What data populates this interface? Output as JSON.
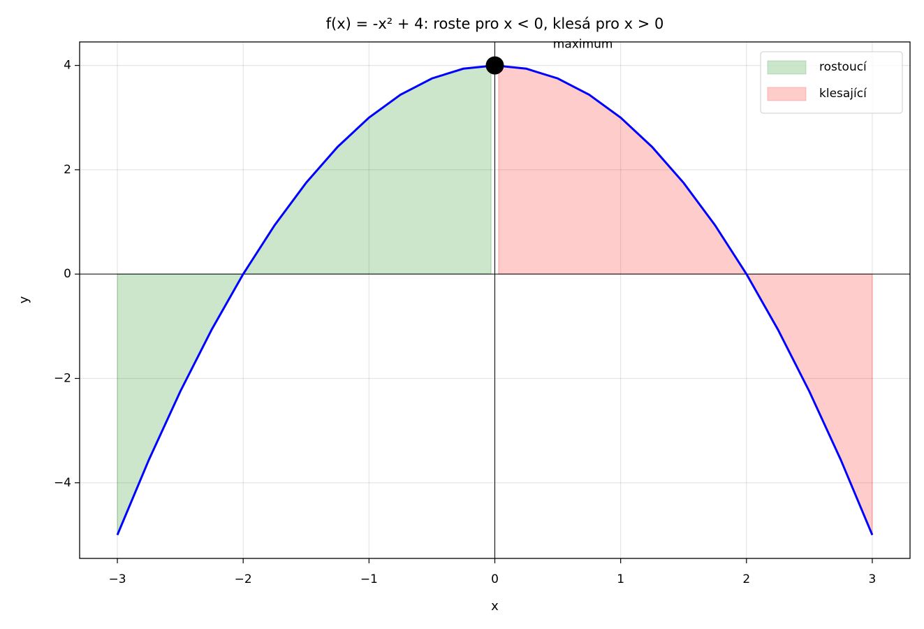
{
  "chart_data": {
    "type": "line",
    "title": "f(x) = -x² + 4: roste pro x < 0, klesá pro x > 0",
    "x_label": "x",
    "y_label": "y",
    "x": [
      -3,
      -2.75,
      -2.5,
      -2.25,
      -2,
      -1.75,
      -1.5,
      -1.25,
      -1,
      -0.75,
      -0.5,
      -0.25,
      0,
      0.25,
      0.5,
      0.75,
      1,
      1.25,
      1.5,
      1.75,
      2,
      2.25,
      2.5,
      2.75,
      3
    ],
    "series": [
      {
        "color": "#0000ff",
        "values": [
          -5,
          -3.5625,
          -2.25,
          -1.0625,
          0,
          0.9375,
          1.75,
          2.4375,
          3,
          3.4375,
          3.75,
          3.9375,
          4,
          3.9375,
          3.75,
          3.4375,
          3,
          2.4375,
          1.75,
          0.9375,
          0,
          -1.0625,
          -2.25,
          -3.5625,
          -5
        ]
      }
    ],
    "fills": [
      {
        "name": "rostoucí",
        "color": "#008000",
        "opacity": 0.2,
        "x": [
          -3,
          -2.75,
          -2.5,
          -2.25,
          -2,
          -1.75,
          -1.5,
          -1.25,
          -1,
          -0.75,
          -0.5,
          -0.25,
          -0.03
        ],
        "values": [
          -5,
          -3.5625,
          -2.25,
          -1.0625,
          0,
          0.9375,
          1.75,
          2.4375,
          3,
          3.4375,
          3.75,
          3.9375,
          3.9991
        ]
      },
      {
        "name": "klesající",
        "color": "#ff0000",
        "opacity": 0.2,
        "x": [
          0.03,
          0.25,
          0.5,
          0.75,
          1,
          1.25,
          1.5,
          1.75,
          2,
          2.25,
          2.5,
          2.75,
          3
        ],
        "values": [
          3.9991,
          3.9375,
          3.75,
          3.4375,
          3,
          2.4375,
          1.75,
          0.9375,
          0,
          -1.0625,
          -2.25,
          -3.5625,
          -5
        ]
      }
    ],
    "points": [
      {
        "x": 0,
        "y": 4,
        "color": "#000000"
      }
    ],
    "annotations": [
      {
        "text": "maximum",
        "x": 0.7,
        "y": 4.4
      }
    ],
    "hline": 0,
    "vline": 0,
    "xlim": [
      -3.3,
      3.3
    ],
    "ylim": [
      -5.45,
      4.45
    ],
    "xticks": [
      {
        "value": -3,
        "label": "−3"
      },
      {
        "value": -2,
        "label": "−2"
      },
      {
        "value": -1,
        "label": "−1"
      },
      0,
      1,
      2,
      3
    ],
    "yticks": [
      {
        "value": -4,
        "label": "−4"
      },
      {
        "value": -2,
        "label": "−2"
      },
      0,
      2,
      4
    ],
    "grid": true,
    "legend": "upper right"
  }
}
